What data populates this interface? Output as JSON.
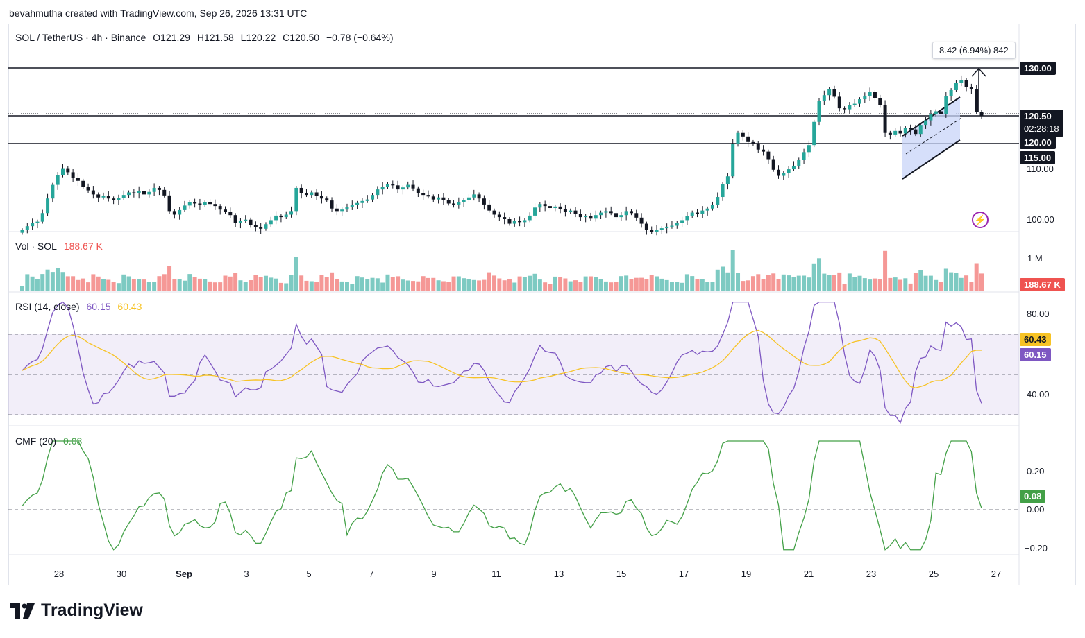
{
  "attribution": "bevahmutha created with TradingView.com, Sep 26, 2026 13:31 UTC",
  "header": {
    "symbol": "SOL / TetherUS · 4h · Binance",
    "open": "O121.29",
    "high": "H121.58",
    "low": "L120.22",
    "close": "C120.50",
    "change": "−0.78 (−0.64%)"
  },
  "price_axis": {
    "levels": [
      "130.00",
      "120.50",
      "02:28:18",
      "120.00",
      "115.00",
      "110.00",
      "100.00"
    ]
  },
  "measure": {
    "text": "8.42 (6.94%) 842"
  },
  "volume": {
    "title": "Vol · SOL",
    "value": "188.67 K",
    "axis_label": "1 M",
    "tag": "188.67 K"
  },
  "rsi": {
    "title": "RSI (14, close)",
    "value": "60.15",
    "ma_value": "60.43",
    "axis": [
      "80.00",
      "40.00"
    ]
  },
  "cmf": {
    "title": "CMF (20)",
    "value": "0.08",
    "axis": [
      "0.20",
      "0.00",
      "−0.20"
    ]
  },
  "x_axis": {
    "labels": [
      "28",
      "30",
      "Sep",
      "3",
      "5",
      "7",
      "9",
      "11",
      "13",
      "15",
      "17",
      "19",
      "21",
      "23",
      "25",
      "27"
    ]
  },
  "brand": "TradingView",
  "colors": {
    "up": "#26a69a",
    "down": "#ef5350",
    "rsi": "#7e57c2",
    "rsi_ma": "#f7c325",
    "cmf": "#43a047",
    "channel_fill": "#c8d4f8"
  },
  "chart_data": {
    "type": "candlestick",
    "interval": "4h",
    "ylim": [
      97,
      135
    ],
    "x_labels": [
      "28",
      "30",
      "Sep",
      "3",
      "5",
      "7",
      "9",
      "11",
      "13",
      "15",
      "17",
      "19",
      "21",
      "23",
      "25",
      "27"
    ],
    "horizontal_levels": [
      130.0,
      120.5,
      115.0,
      120.0
    ],
    "closes": [
      97.8,
      98.6,
      99.2,
      99.5,
      101.2,
      104.1,
      106.8,
      108.7,
      110.1,
      109.3,
      108.2,
      107.6,
      106.4,
      105.7,
      104.9,
      104.3,
      104.6,
      104.1,
      103.8,
      104.2,
      104.8,
      105.3,
      105.1,
      105.6,
      104.9,
      105.4,
      106.2,
      105.8,
      104.7,
      101.6,
      100.9,
      101.8,
      102.7,
      103.4,
      103.1,
      102.8,
      103.3,
      103.0,
      102.6,
      101.9,
      101.4,
      100.8,
      99.2,
      99.6,
      99.9,
      98.9,
      98.4,
      98.1,
      99.0,
      99.8,
      100.7,
      100.4,
      100.9,
      101.6,
      106.2,
      105.1,
      104.8,
      105.3,
      104.6,
      104.1,
      103.7,
      102.1,
      101.6,
      101.9,
      102.4,
      102.8,
      103.2,
      103.6,
      103.9,
      104.8,
      105.9,
      106.4,
      107.0,
      106.7,
      105.9,
      106.3,
      106.8,
      106.1,
      105.2,
      104.8,
      104.5,
      103.9,
      104.3,
      103.8,
      103.1,
      102.9,
      103.4,
      103.8,
      104.3,
      104.9,
      104.1,
      102.9,
      101.7,
      100.9,
      100.4,
      100.0,
      99.1,
      99.6,
      99.4,
      99.8,
      100.7,
      102.3,
      103.0,
      102.6,
      102.2,
      102.5,
      102.0,
      101.5,
      101.7,
      101.0,
      100.4,
      100.6,
      100.1,
      100.8,
      101.3,
      101.6,
      101.2,
      100.4,
      100.8,
      101.6,
      101.2,
      100.3,
      99.1,
      97.9,
      97.4,
      97.9,
      98.2,
      98.5,
      98.7,
      99.2,
      99.8,
      100.6,
      101.3,
      101.0,
      101.7,
      102.1,
      102.8,
      104.4,
      106.9,
      108.5,
      115.0,
      117.1,
      116.4,
      115.3,
      114.9,
      113.8,
      113.4,
      111.9,
      109.8,
      108.6,
      109.2,
      109.9,
      110.6,
      111.8,
      113.3,
      114.7,
      119.3,
      123.4,
      124.6,
      125.8,
      124.3,
      122.0,
      121.8,
      122.6,
      122.9,
      123.8,
      124.5,
      125.2,
      124.0,
      122.7,
      117.1,
      116.8,
      117.5,
      117.0,
      118.1,
      117.8,
      116.9,
      118.7,
      119.6,
      120.8,
      121.4,
      120.9,
      124.4,
      125.6,
      127.0,
      127.6,
      126.2,
      125.8,
      121.3,
      120.5
    ]
  }
}
